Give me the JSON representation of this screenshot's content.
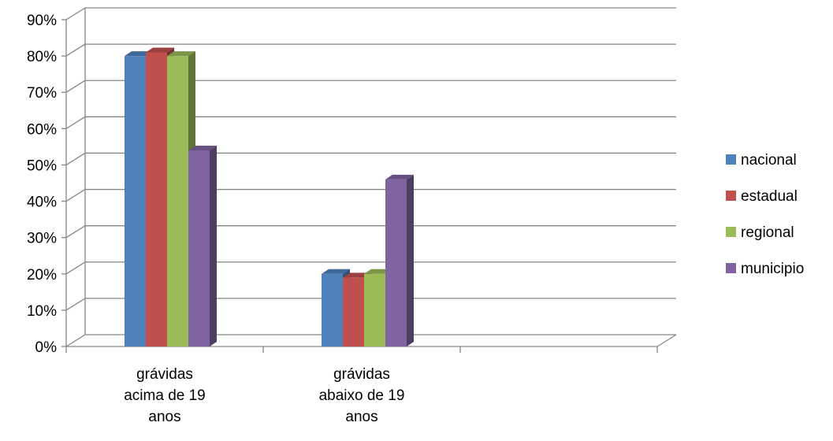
{
  "chart_data": {
    "type": "bar",
    "title": "",
    "xlabel": "",
    "ylabel": "",
    "ylim": [
      0,
      0.9
    ],
    "yticks": [
      "0%",
      "10%",
      "20%",
      "30%",
      "40%",
      "50%",
      "60%",
      "70%",
      "80%",
      "90%"
    ],
    "categories": [
      [
        "grávidas",
        "acima de 19",
        "anos"
      ],
      [
        "grávidas",
        "abaixo de 19",
        "anos"
      ],
      [
        ""
      ]
    ],
    "series": [
      {
        "name": "nacional",
        "color": "#4F81BD",
        "values": [
          0.8,
          0.2,
          null
        ]
      },
      {
        "name": "estadual",
        "color": "#C0504D",
        "values": [
          0.81,
          0.19,
          null
        ]
      },
      {
        "name": "regional",
        "color": "#9BBB59",
        "values": [
          0.8,
          0.2,
          null
        ]
      },
      {
        "name": "municipio",
        "color": "#8064A2",
        "values": [
          0.54,
          0.46,
          null
        ]
      }
    ],
    "grid": true,
    "legend": "right",
    "style": "3d-clustered-column"
  }
}
